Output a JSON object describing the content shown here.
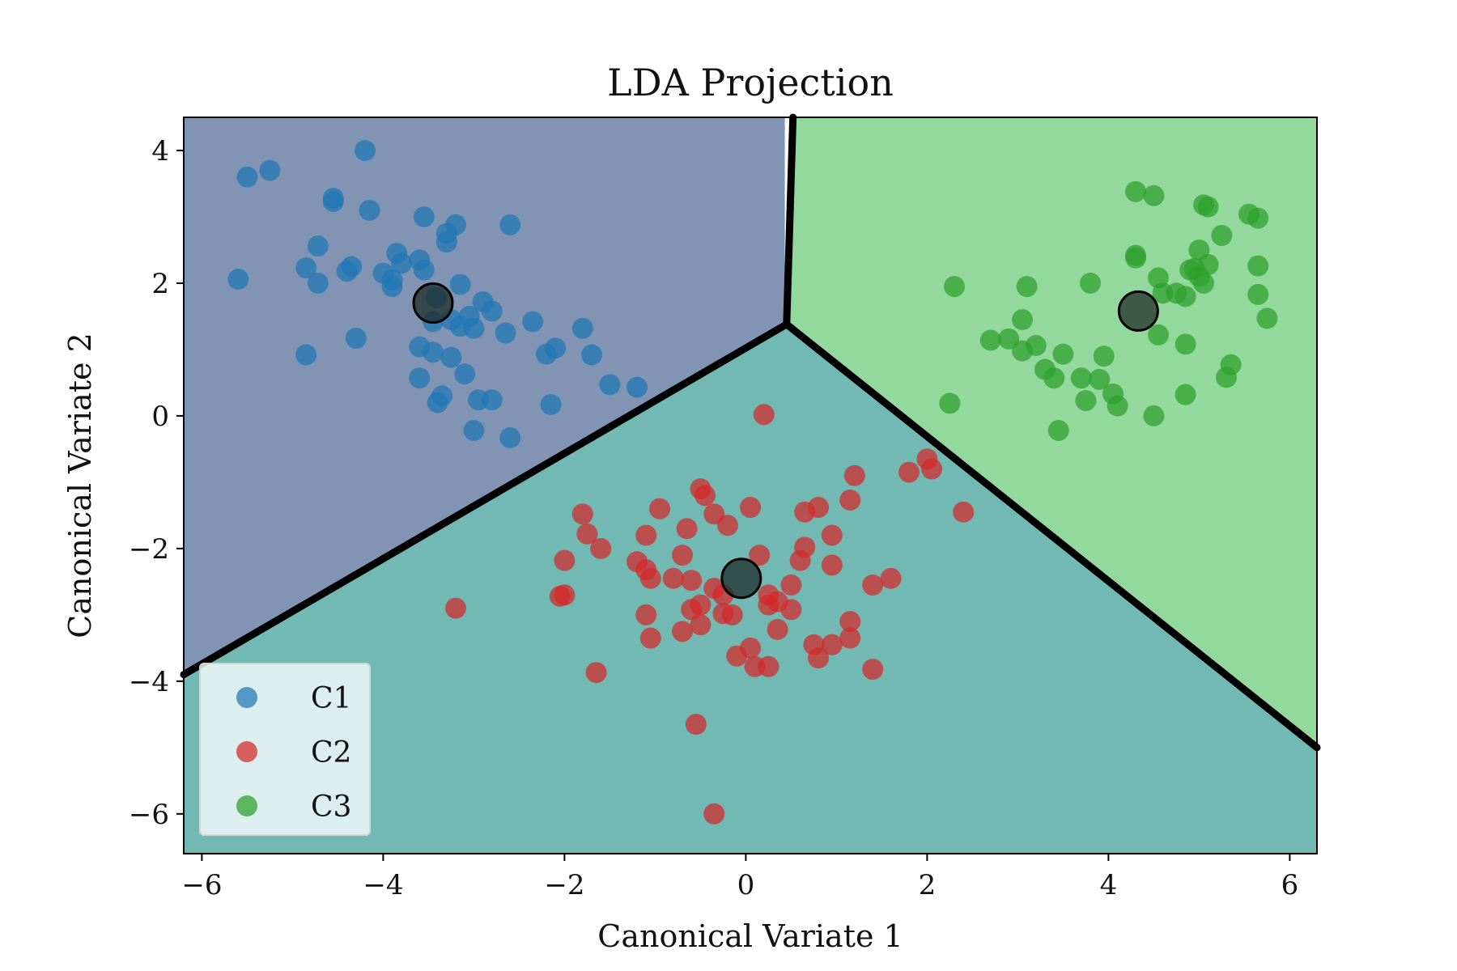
{
  "chart_data": {
    "type": "scatter",
    "title": "LDA Projection",
    "xlabel": "Canonical Variate 1",
    "ylabel": "Canonical Variate 2",
    "xlim": [
      -6.2,
      6.3
    ],
    "ylim": [
      -6.6,
      4.5
    ],
    "xticks": [
      -6,
      -4,
      -2,
      0,
      2,
      4,
      6
    ],
    "yticks": [
      -6,
      -4,
      -2,
      0,
      2,
      4
    ],
    "grid": false,
    "legend_position": "bottom-left",
    "regions": [
      {
        "class": "C1",
        "color": "#8294b4",
        "polygon": [
          [
            -6.2,
            4.5
          ],
          [
            0.43,
            4.5
          ],
          [
            0.43,
            1.38
          ],
          [
            -6.2,
            -3.9
          ]
        ]
      },
      {
        "class": "C3",
        "color": "#93d89c",
        "polygon": [
          [
            0.5,
            4.5
          ],
          [
            6.3,
            4.5
          ],
          [
            6.3,
            -5.0
          ],
          [
            0.45,
            1.38
          ]
        ]
      },
      {
        "class": "C2",
        "color": "#72b8b3",
        "polygon": [
          [
            -6.2,
            -3.9
          ],
          [
            0.45,
            1.38
          ],
          [
            6.3,
            -5.0
          ],
          [
            6.3,
            -6.6
          ],
          [
            -6.2,
            -6.6
          ]
        ]
      }
    ],
    "boundaries": [
      [
        [
          -6.2,
          -3.9
        ],
        [
          0.45,
          1.38
        ]
      ],
      [
        [
          0.45,
          1.38
        ],
        [
          0.52,
          4.5
        ]
      ],
      [
        [
          0.45,
          1.38
        ],
        [
          6.3,
          -5.0
        ]
      ]
    ],
    "series": [
      {
        "name": "C1",
        "color": "#1f77b4",
        "centroid": [
          -3.45,
          1.7
        ],
        "points": [
          [
            -4.2,
            4.0
          ],
          [
            -5.25,
            3.7
          ],
          [
            -5.5,
            3.6
          ],
          [
            -4.55,
            3.28
          ],
          [
            -4.55,
            3.23
          ],
          [
            -4.15,
            3.1
          ],
          [
            -3.55,
            3.0
          ],
          [
            -3.2,
            2.88
          ],
          [
            -2.6,
            2.88
          ],
          [
            -3.3,
            2.75
          ],
          [
            -3.3,
            2.62
          ],
          [
            -4.72,
            2.56
          ],
          [
            -3.85,
            2.45
          ],
          [
            -3.6,
            2.35
          ],
          [
            -3.8,
            2.3
          ],
          [
            -4.35,
            2.25
          ],
          [
            -4.85,
            2.23
          ],
          [
            -3.55,
            2.2
          ],
          [
            -4.4,
            2.18
          ],
          [
            -4.0,
            2.15
          ],
          [
            -3.9,
            2.05
          ],
          [
            -5.6,
            2.06
          ],
          [
            -3.9,
            1.95
          ],
          [
            -4.72,
            2.0
          ],
          [
            -3.15,
            1.98
          ],
          [
            -3.42,
            1.78
          ],
          [
            -2.9,
            1.72
          ],
          [
            -2.8,
            1.58
          ],
          [
            -3.05,
            1.5
          ],
          [
            -3.25,
            1.45
          ],
          [
            -3.45,
            1.42
          ],
          [
            -3.15,
            1.35
          ],
          [
            -3.0,
            1.32
          ],
          [
            -2.35,
            1.42
          ],
          [
            -1.8,
            1.32
          ],
          [
            -2.65,
            1.25
          ],
          [
            -4.3,
            1.17
          ],
          [
            -3.6,
            1.04
          ],
          [
            -2.1,
            1.02
          ],
          [
            -3.45,
            0.96
          ],
          [
            -2.2,
            0.93
          ],
          [
            -1.7,
            0.92
          ],
          [
            -3.25,
            0.88
          ],
          [
            -4.85,
            0.92
          ],
          [
            -3.1,
            0.63
          ],
          [
            -3.6,
            0.57
          ],
          [
            -1.5,
            0.47
          ],
          [
            -1.2,
            0.43
          ],
          [
            -3.35,
            0.3
          ],
          [
            -3.4,
            0.2
          ],
          [
            -2.95,
            0.24
          ],
          [
            -2.8,
            0.24
          ],
          [
            -2.15,
            0.17
          ],
          [
            -3.0,
            -0.22
          ],
          [
            -2.6,
            -0.33
          ]
        ]
      },
      {
        "name": "C2",
        "color": "#d62728",
        "centroid": [
          -0.05,
          -2.45
        ],
        "points": [
          [
            0.2,
            0.02
          ],
          [
            2.0,
            -0.65
          ],
          [
            2.05,
            -0.8
          ],
          [
            1.8,
            -0.85
          ],
          [
            1.2,
            -0.9
          ],
          [
            -0.5,
            -1.1
          ],
          [
            -0.45,
            -1.2
          ],
          [
            1.15,
            -1.27
          ],
          [
            -1.8,
            -1.48
          ],
          [
            -0.95,
            -1.4
          ],
          [
            0.05,
            -1.38
          ],
          [
            0.8,
            -1.38
          ],
          [
            0.65,
            -1.45
          ],
          [
            -0.35,
            -1.48
          ],
          [
            2.4,
            -1.45
          ],
          [
            -0.2,
            -1.65
          ],
          [
            -0.65,
            -1.7
          ],
          [
            -1.75,
            -1.78
          ],
          [
            -1.1,
            -1.8
          ],
          [
            0.95,
            -1.8
          ],
          [
            -1.6,
            -2.0
          ],
          [
            0.65,
            -1.98
          ],
          [
            0.15,
            -2.1
          ],
          [
            -0.7,
            -2.1
          ],
          [
            -2.0,
            -2.18
          ],
          [
            -1.2,
            -2.2
          ],
          [
            0.6,
            -2.18
          ],
          [
            0.95,
            -2.25
          ],
          [
            -1.1,
            -2.32
          ],
          [
            -1.05,
            -2.45
          ],
          [
            -0.8,
            -2.45
          ],
          [
            -0.6,
            -2.48
          ],
          [
            1.6,
            -2.45
          ],
          [
            1.4,
            -2.55
          ],
          [
            0.5,
            -2.55
          ],
          [
            -0.35,
            -2.6
          ],
          [
            -0.25,
            -2.7
          ],
          [
            0.25,
            -2.7
          ],
          [
            -2.0,
            -2.7
          ],
          [
            -2.05,
            -2.72
          ],
          [
            0.35,
            -2.8
          ],
          [
            0.25,
            -2.85
          ],
          [
            -0.5,
            -2.85
          ],
          [
            -0.6,
            -2.92
          ],
          [
            0.5,
            -2.92
          ],
          [
            -0.25,
            -2.98
          ],
          [
            -0.15,
            -3.0
          ],
          [
            -1.1,
            -3.0
          ],
          [
            -3.2,
            -2.9
          ],
          [
            1.15,
            -3.1
          ],
          [
            -0.5,
            -3.15
          ],
          [
            0.35,
            -3.22
          ],
          [
            -0.7,
            -3.25
          ],
          [
            1.15,
            -3.35
          ],
          [
            -1.05,
            -3.35
          ],
          [
            0.75,
            -3.45
          ],
          [
            0.95,
            -3.45
          ],
          [
            0.05,
            -3.5
          ],
          [
            -0.1,
            -3.62
          ],
          [
            0.8,
            -3.65
          ],
          [
            0.1,
            -3.78
          ],
          [
            0.25,
            -3.78
          ],
          [
            1.4,
            -3.82
          ],
          [
            -1.65,
            -3.87
          ],
          [
            -0.55,
            -4.65
          ],
          [
            -0.35,
            -6.0
          ]
        ]
      },
      {
        "name": "C3",
        "color": "#2ca02c",
        "centroid": [
          4.33,
          1.58
        ],
        "points": [
          [
            4.3,
            3.38
          ],
          [
            4.5,
            3.32
          ],
          [
            5.05,
            3.18
          ],
          [
            5.1,
            3.15
          ],
          [
            5.55,
            3.04
          ],
          [
            5.65,
            2.98
          ],
          [
            5.25,
            2.72
          ],
          [
            5.0,
            2.5
          ],
          [
            4.3,
            2.42
          ],
          [
            4.3,
            2.38
          ],
          [
            5.1,
            2.28
          ],
          [
            4.9,
            2.2
          ],
          [
            5.65,
            2.26
          ],
          [
            4.95,
            2.22
          ],
          [
            5.0,
            2.1
          ],
          [
            4.55,
            2.08
          ],
          [
            5.05,
            2.0
          ],
          [
            3.8,
            2.0
          ],
          [
            3.1,
            1.95
          ],
          [
            2.3,
            1.95
          ],
          [
            4.75,
            1.85
          ],
          [
            5.65,
            1.83
          ],
          [
            4.6,
            1.85
          ],
          [
            4.85,
            1.8
          ],
          [
            3.05,
            1.45
          ],
          [
            5.75,
            1.47
          ],
          [
            4.55,
            1.22
          ],
          [
            2.7,
            1.14
          ],
          [
            2.9,
            1.16
          ],
          [
            3.2,
            1.06
          ],
          [
            3.05,
            0.98
          ],
          [
            3.5,
            0.93
          ],
          [
            3.95,
            0.9
          ],
          [
            4.85,
            1.08
          ],
          [
            5.35,
            0.77
          ],
          [
            3.3,
            0.7
          ],
          [
            3.4,
            0.57
          ],
          [
            3.7,
            0.57
          ],
          [
            3.9,
            0.55
          ],
          [
            5.3,
            0.58
          ],
          [
            4.05,
            0.33
          ],
          [
            3.75,
            0.23
          ],
          [
            4.1,
            0.15
          ],
          [
            4.85,
            0.32
          ],
          [
            2.25,
            0.19
          ],
          [
            4.5,
            0.0
          ],
          [
            3.45,
            -0.22
          ]
        ]
      }
    ]
  }
}
